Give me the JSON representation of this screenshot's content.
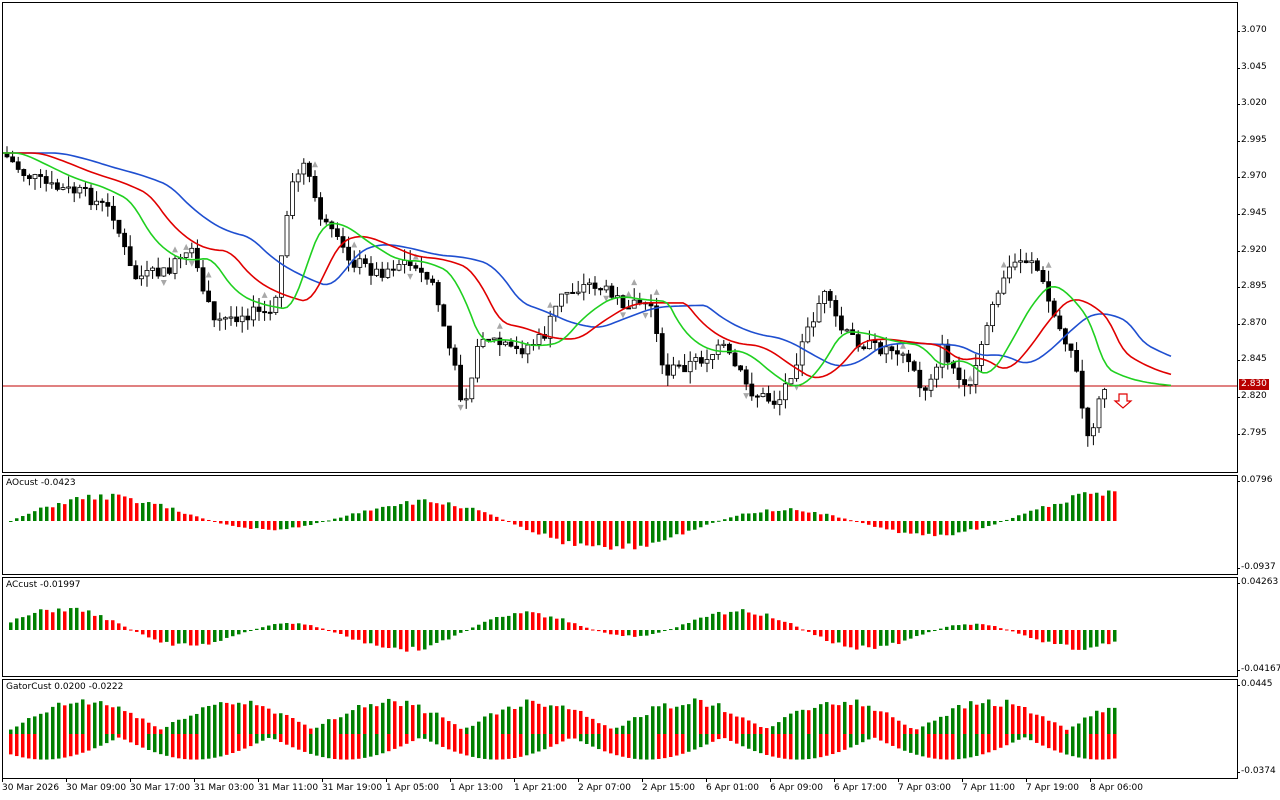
{
  "main_chart": {
    "price_ticks": [
      "3.070",
      "3.045",
      "3.020",
      "2.995",
      "2.970",
      "2.945",
      "2.920",
      "2.895",
      "2.870",
      "2.845",
      "2.820",
      "2.795"
    ],
    "current_price": "2.830",
    "colors": {
      "bull_body": "#ffffff",
      "bear_body": "#000000",
      "jaw": "#1f4fd0",
      "teeth": "#e00000",
      "lips": "#20d020",
      "current_line": "#c00000",
      "fractal": "#a8a8a8",
      "signal_arrow": "#e00000"
    },
    "signal": "down-arrow-icon"
  },
  "ao": {
    "title": "AOcust -0.0423",
    "scale_top": "0.0796",
    "scale_bottom": "-0.0937",
    "colors": {
      "up": "#008000",
      "down": "#ff0000"
    }
  },
  "ac": {
    "title": "ACcust -0.01997",
    "scale_top": "0.04263",
    "scale_bottom": "-0.04167",
    "colors": {
      "up": "#008000",
      "down": "#ff0000"
    }
  },
  "gator": {
    "title": "GatorCust 0.0200 -0.0222",
    "scale_top": "0.0445",
    "scale_bottom": "-0.0374",
    "colors": {
      "up": "#008000",
      "down": "#ff0000"
    }
  },
  "time_axis": [
    "30 Mar 2026",
    "30 Mar 09:00",
    "30 Mar 17:00",
    "31 Mar 03:00",
    "31 Mar 11:00",
    "31 Mar 19:00",
    "1 Apr 05:00",
    "1 Apr 13:00",
    "1 Apr 21:00",
    "2 Apr 07:00",
    "2 Apr 15:00",
    "6 Apr 01:00",
    "6 Apr 09:00",
    "6 Apr 17:00",
    "7 Apr 03:00",
    "7 Apr 11:00",
    "7 Apr 19:00",
    "8 Apr 06:00"
  ]
}
